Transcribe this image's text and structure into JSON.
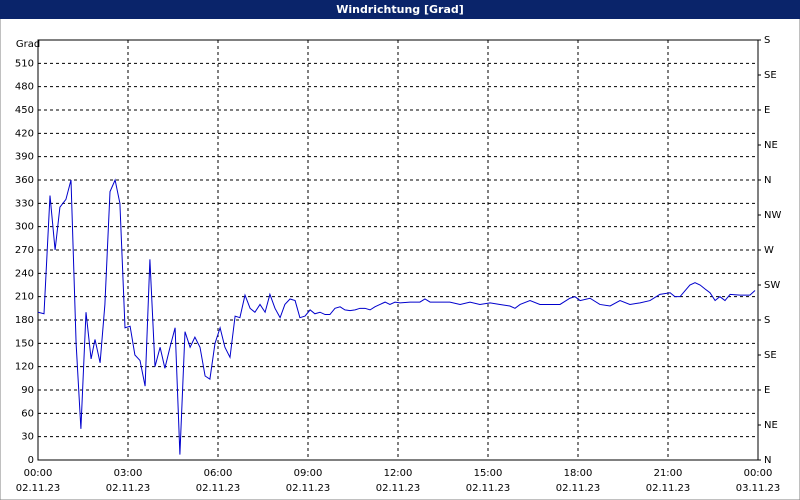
{
  "chart_data": {
    "type": "line",
    "title": "Windrichtung [Grad]",
    "y_label": "Grad",
    "grid": true,
    "xlim": [
      0,
      24
    ],
    "xticks": [
      {
        "value": 0,
        "label": "00:00\n02.11.23"
      },
      {
        "value": 3,
        "label": "03:00\n02.11.23"
      },
      {
        "value": 6,
        "label": "06:00\n02.11.23"
      },
      {
        "value": 9,
        "label": "09:00\n02.11.23"
      },
      {
        "value": 12,
        "label": "12:00\n02.11.23"
      },
      {
        "value": 15,
        "label": "15:00\n02.11.23"
      },
      {
        "value": 18,
        "label": "18:00\n02.11.23"
      },
      {
        "value": 21,
        "label": "21:00\n02.11.23"
      },
      {
        "value": 24,
        "label": "00:00\n03.11.23"
      }
    ],
    "ylim": [
      0,
      540
    ],
    "yticks": [
      0,
      30,
      60,
      90,
      120,
      150,
      180,
      210,
      240,
      270,
      300,
      330,
      360,
      390,
      420,
      450,
      480,
      510
    ],
    "y2lim": [
      0,
      540
    ],
    "y2ticks": [
      {
        "value": 0,
        "label": "N"
      },
      {
        "value": 45,
        "label": "NE"
      },
      {
        "value": 90,
        "label": "E"
      },
      {
        "value": 135,
        "label": "SE"
      },
      {
        "value": 180,
        "label": "S"
      },
      {
        "value": 225,
        "label": "SW"
      },
      {
        "value": 270,
        "label": "W"
      },
      {
        "value": 315,
        "label": "NW"
      },
      {
        "value": 360,
        "label": "N"
      },
      {
        "value": 405,
        "label": "NE"
      },
      {
        "value": 450,
        "label": "E"
      },
      {
        "value": 495,
        "label": "SE"
      },
      {
        "value": 540,
        "label": "S"
      }
    ],
    "x": [
      0,
      0.2,
      0.4,
      0.57,
      0.73,
      0.93,
      1.1,
      1.27,
      1.43,
      1.6,
      1.77,
      1.9,
      2.07,
      2.23,
      2.4,
      2.57,
      2.73,
      2.9,
      3.07,
      3.23,
      3.4,
      3.57,
      3.73,
      3.9,
      4.07,
      4.23,
      4.4,
      4.57,
      4.73,
      4.9,
      5.07,
      5.23,
      5.4,
      5.57,
      5.73,
      5.9,
      6.07,
      6.23,
      6.4,
      6.57,
      6.73,
      6.9,
      7.07,
      7.23,
      7.4,
      7.57,
      7.73,
      7.9,
      8.07,
      8.23,
      8.4,
      8.57,
      8.73,
      8.9,
      9.07,
      9.23,
      9.4,
      9.57,
      9.73,
      9.9,
      10.07,
      10.23,
      10.4,
      10.57,
      10.73,
      10.9,
      11.07,
      11.23,
      11.4,
      11.57,
      11.73,
      11.9,
      12.07,
      12.4,
      12.73,
      12.9,
      13.07,
      13.4,
      13.73,
      14.07,
      14.4,
      14.73,
      15.07,
      15.4,
      15.73,
      15.9,
      16.07,
      16.4,
      16.73,
      17.07,
      17.4,
      17.73,
      17.9,
      18.07,
      18.4,
      18.73,
      19.07,
      19.4,
      19.73,
      20.07,
      20.4,
      20.73,
      21.07,
      21.23,
      21.4,
      21.73,
      21.9,
      22.07,
      22.23,
      22.4,
      22.57,
      22.73,
      22.9,
      23.07,
      23.4,
      23.73,
      23.9
    ],
    "series": [
      {
        "color": "#0000cc",
        "values": [
          190,
          188,
          340,
          270,
          325,
          335,
          360,
          150,
          40,
          190,
          130,
          155,
          125,
          200,
          345,
          360,
          330,
          170,
          172,
          135,
          128,
          95,
          258,
          120,
          145,
          118,
          145,
          170,
          7,
          165,
          145,
          158,
          145,
          108,
          104,
          150,
          170,
          145,
          132,
          185,
          183,
          212,
          195,
          190,
          200,
          190,
          213,
          195,
          183,
          200,
          207,
          205,
          183,
          185,
          193,
          188,
          190,
          187,
          187,
          195,
          197,
          193,
          192,
          193,
          195,
          195,
          193,
          197,
          200,
          203,
          200,
          203,
          202,
          203,
          203,
          207,
          203,
          203,
          203,
          200,
          203,
          200,
          202,
          200,
          198,
          195,
          200,
          205,
          200,
          200,
          200,
          208,
          210,
          205,
          208,
          200,
          198,
          205,
          200,
          202,
          205,
          213,
          215,
          210,
          210,
          225,
          228,
          225,
          220,
          215,
          205,
          210,
          205,
          213,
          212,
          212,
          218
        ]
      }
    ]
  }
}
